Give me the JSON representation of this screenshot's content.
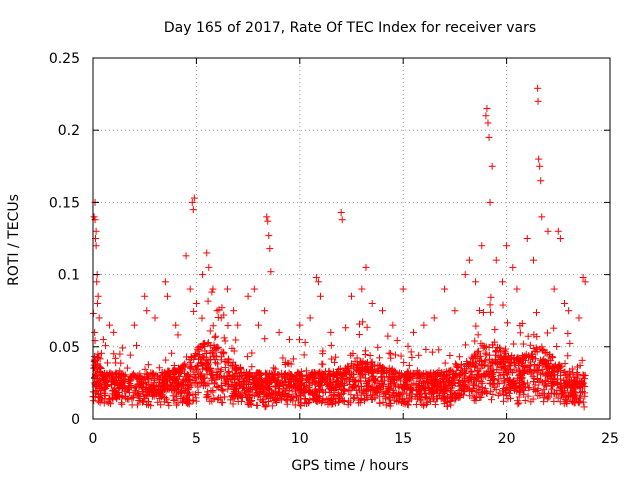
{
  "chart_data": {
    "type": "scatter",
    "title": "Day 165 of 2017, Rate Of TEC Index for receiver vars",
    "xlabel": "GPS time / hours",
    "ylabel": "ROTI / TECUs",
    "xlim": [
      0,
      25
    ],
    "ylim": [
      0,
      0.25
    ],
    "x_ticks": [
      "0",
      "5",
      "10",
      "15",
      "20",
      "25"
    ],
    "y_ticks": [
      "0",
      "0.05",
      "0.1",
      "0.15",
      "0.2",
      "0.25"
    ],
    "grid": true,
    "legend": "none",
    "marker": "plus",
    "color": "#ff0000",
    "series": [
      {
        "x": [
          0.05,
          0.1,
          0.15,
          0.2,
          0.25,
          0.3,
          0.1,
          0.12,
          0.18,
          0.22,
          0.08,
          0.15,
          0.5,
          0.8,
          1.0,
          1.3,
          2.0,
          2.5,
          2.6,
          3.0,
          3.5,
          3.6,
          4.0,
          4.5,
          4.7,
          4.8,
          4.85,
          4.9,
          5.0,
          5.3,
          5.5,
          5.6,
          5.8,
          6.0,
          6.2,
          6.5,
          6.8,
          7.0,
          7.5,
          7.8,
          8.0,
          8.3,
          8.4,
          8.45,
          8.5,
          8.55,
          8.6,
          9.0,
          9.5,
          10.0,
          10.5,
          10.8,
          10.9,
          11.0,
          11.5,
          12.0,
          12.05,
          12.5,
          13.0,
          13.2,
          13.5,
          14.0,
          14.5,
          15.0,
          15.5,
          16.0,
          16.5,
          17.0,
          17.5,
          18.0,
          18.2,
          18.5,
          18.8,
          19.0,
          19.05,
          19.1,
          19.15,
          19.2,
          19.3,
          19.5,
          19.8,
          20.0,
          20.3,
          20.5,
          21.0,
          21.3,
          21.5,
          21.52,
          21.55,
          21.6,
          21.65,
          21.7,
          22.0,
          22.3,
          22.5,
          22.6,
          22.8,
          23.0,
          23.5,
          23.7,
          23.8
        ],
        "y": [
          0.14,
          0.15,
          0.12,
          0.1,
          0.085,
          0.07,
          0.138,
          0.125,
          0.095,
          0.08,
          0.06,
          0.13,
          0.055,
          0.065,
          0.06,
          0.045,
          0.065,
          0.085,
          0.075,
          0.07,
          0.095,
          0.085,
          0.065,
          0.113,
          0.09,
          0.15,
          0.145,
          0.153,
          0.08,
          0.1,
          0.115,
          0.105,
          0.09,
          0.075,
          0.07,
          0.09,
          0.075,
          0.065,
          0.085,
          0.09,
          0.065,
          0.075,
          0.14,
          0.137,
          0.127,
          0.118,
          0.102,
          0.06,
          0.055,
          0.065,
          0.07,
          0.098,
          0.095,
          0.085,
          0.06,
          0.143,
          0.138,
          0.085,
          0.09,
          0.105,
          0.08,
          0.075,
          0.065,
          0.09,
          0.06,
          0.065,
          0.07,
          0.09,
          0.075,
          0.1,
          0.11,
          0.095,
          0.12,
          0.21,
          0.215,
          0.205,
          0.195,
          0.15,
          0.175,
          0.11,
          0.095,
          0.12,
          0.105,
          0.09,
          0.125,
          0.11,
          0.229,
          0.22,
          0.18,
          0.175,
          0.165,
          0.14,
          0.13,
          0.09,
          0.13,
          0.125,
          0.08,
          0.075,
          0.07,
          0.098,
          0.095
        ]
      }
    ]
  }
}
